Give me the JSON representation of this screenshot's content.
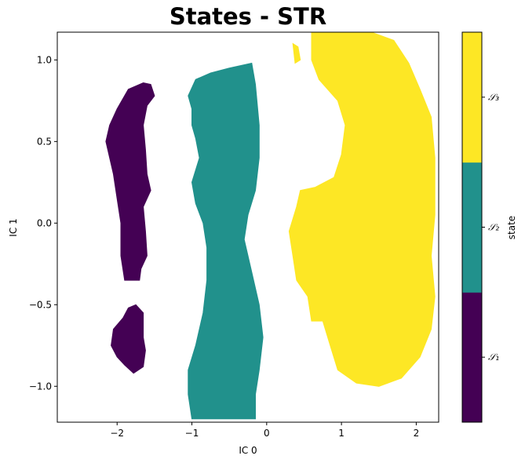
{
  "chart_data": {
    "type": "heatmap",
    "title": "States - STR",
    "xlabel": "IC 0",
    "ylabel": "IC 1",
    "xlim": [
      -2.8,
      2.3
    ],
    "ylim": [
      -1.22,
      1.17
    ],
    "xticks": [
      -2,
      -1,
      0,
      1,
      2
    ],
    "xtick_labels": [
      "−2",
      "−1",
      "0",
      "1",
      "2"
    ],
    "yticks": [
      -1.0,
      -0.5,
      0.0,
      0.5,
      1.0
    ],
    "ytick_labels": [
      "−1.0",
      "−0.5",
      "0.0",
      "0.5",
      "1.0"
    ],
    "grid": false,
    "colorbar": {
      "label": "state",
      "colors": [
        "#440154",
        "#21918c",
        "#fde725"
      ],
      "tick_labels": [
        "𝒮₁",
        "𝒮₂",
        "𝒮₃"
      ]
    },
    "states": [
      {
        "name": "𝒮₁",
        "color": "#440154",
        "regions": [
          [
            [
              -1.55,
              0.85
            ],
            [
              -1.5,
              0.78
            ],
            [
              -1.6,
              0.72
            ],
            [
              -1.65,
              0.6
            ],
            [
              -1.62,
              0.45
            ],
            [
              -1.6,
              0.3
            ],
            [
              -1.55,
              0.2
            ],
            [
              -1.65,
              0.1
            ],
            [
              -1.62,
              -0.05
            ],
            [
              -1.6,
              -0.2
            ],
            [
              -1.68,
              -0.28
            ],
            [
              -1.7,
              -0.35
            ],
            [
              -1.9,
              -0.35
            ],
            [
              -1.95,
              -0.2
            ],
            [
              -1.95,
              0.0
            ],
            [
              -2.0,
              0.15
            ],
            [
              -2.05,
              0.3
            ],
            [
              -2.15,
              0.5
            ],
            [
              -2.1,
              0.6
            ],
            [
              -2.0,
              0.7
            ],
            [
              -1.85,
              0.82
            ],
            [
              -1.65,
              0.86
            ]
          ],
          [
            [
              -1.75,
              -0.5
            ],
            [
              -1.65,
              -0.55
            ],
            [
              -1.65,
              -0.7
            ],
            [
              -1.62,
              -0.78
            ],
            [
              -1.65,
              -0.88
            ],
            [
              -1.78,
              -0.92
            ],
            [
              -1.9,
              -0.87
            ],
            [
              -2.0,
              -0.82
            ],
            [
              -2.08,
              -0.75
            ],
            [
              -2.05,
              -0.65
            ],
            [
              -1.92,
              -0.58
            ],
            [
              -1.85,
              -0.52
            ]
          ]
        ]
      },
      {
        "name": "𝒮₂",
        "color": "#21918c",
        "regions": [
          [
            [
              -1.05,
              0.78
            ],
            [
              -0.95,
              0.88
            ],
            [
              -0.75,
              0.92
            ],
            [
              -0.5,
              0.95
            ],
            [
              -0.2,
              0.98
            ],
            [
              -0.15,
              0.85
            ],
            [
              -0.1,
              0.6
            ],
            [
              -0.1,
              0.4
            ],
            [
              -0.15,
              0.2
            ],
            [
              -0.25,
              0.05
            ],
            [
              -0.3,
              -0.1
            ],
            [
              -0.2,
              -0.3
            ],
            [
              -0.1,
              -0.5
            ],
            [
              -0.05,
              -0.7
            ],
            [
              -0.1,
              -0.9
            ],
            [
              -0.15,
              -1.05
            ],
            [
              -0.15,
              -1.2
            ],
            [
              -1.0,
              -1.2
            ],
            [
              -1.05,
              -1.05
            ],
            [
              -1.05,
              -0.9
            ],
            [
              -0.95,
              -0.75
            ],
            [
              -0.85,
              -0.55
            ],
            [
              -0.8,
              -0.35
            ],
            [
              -0.8,
              -0.15
            ],
            [
              -0.85,
              0.0
            ],
            [
              -0.95,
              0.12
            ],
            [
              -1.0,
              0.25
            ],
            [
              -0.9,
              0.4
            ],
            [
              -0.95,
              0.52
            ],
            [
              -1.0,
              0.6
            ],
            [
              -1.0,
              0.7
            ]
          ]
        ]
      },
      {
        "name": "𝒮₃",
        "color": "#fde725",
        "regions": [
          [
            [
              0.6,
              1.17
            ],
            [
              1.4,
              1.17
            ],
            [
              1.7,
              1.12
            ],
            [
              1.9,
              0.98
            ],
            [
              2.05,
              0.82
            ],
            [
              2.2,
              0.65
            ],
            [
              2.25,
              0.4
            ],
            [
              2.25,
              0.05
            ],
            [
              2.2,
              -0.2
            ],
            [
              2.25,
              -0.45
            ],
            [
              2.2,
              -0.65
            ],
            [
              2.05,
              -0.82
            ],
            [
              1.8,
              -0.95
            ],
            [
              1.5,
              -1.0
            ],
            [
              1.2,
              -0.98
            ],
            [
              0.95,
              -0.9
            ],
            [
              0.85,
              -0.75
            ],
            [
              0.75,
              -0.6
            ],
            [
              0.6,
              -0.6
            ],
            [
              0.55,
              -0.45
            ],
            [
              0.4,
              -0.35
            ],
            [
              0.35,
              -0.2
            ],
            [
              0.3,
              -0.05
            ],
            [
              0.4,
              0.1
            ],
            [
              0.45,
              0.2
            ],
            [
              0.65,
              0.22
            ],
            [
              0.9,
              0.28
            ],
            [
              1.0,
              0.42
            ],
            [
              1.05,
              0.6
            ],
            [
              0.95,
              0.75
            ],
            [
              0.7,
              0.88
            ],
            [
              0.6,
              1.0
            ]
          ],
          [
            [
              0.35,
              1.1
            ],
            [
              0.42,
              1.08
            ],
            [
              0.45,
              1.0
            ],
            [
              0.38,
              0.98
            ]
          ]
        ]
      }
    ]
  }
}
